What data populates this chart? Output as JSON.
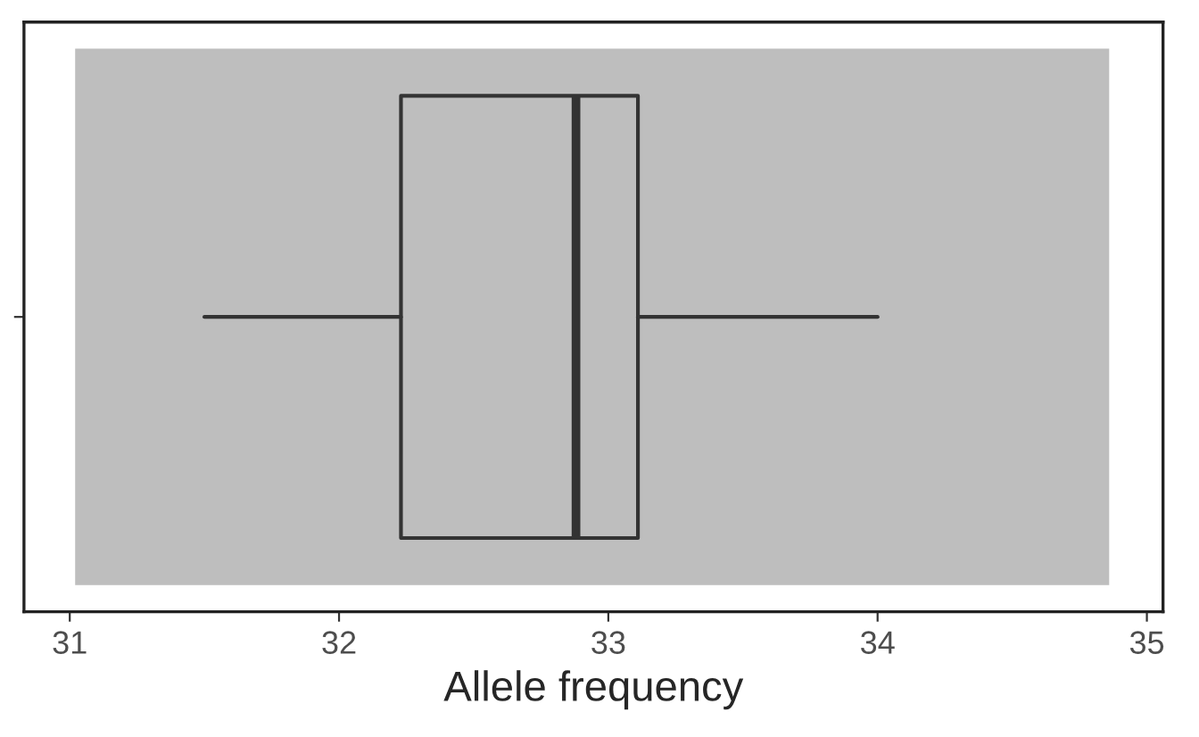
{
  "chart_data": {
    "type": "box",
    "orientation": "horizontal",
    "xlabel": "Allele frequency",
    "categories": [
      null
    ],
    "boxes": [
      {
        "low": 31.5,
        "q1": 32.23,
        "median": 32.88,
        "q3": 33.11,
        "high": 34.0
      }
    ],
    "color": "#333333",
    "bands": [
      {
        "axis": "x",
        "from": 31.02,
        "to": 34.86,
        "color": "#bebebe"
      }
    ],
    "xlim": [
      30.83,
      35.06
    ],
    "xticks": [
      31,
      32,
      33,
      34,
      35
    ],
    "grid": false
  }
}
